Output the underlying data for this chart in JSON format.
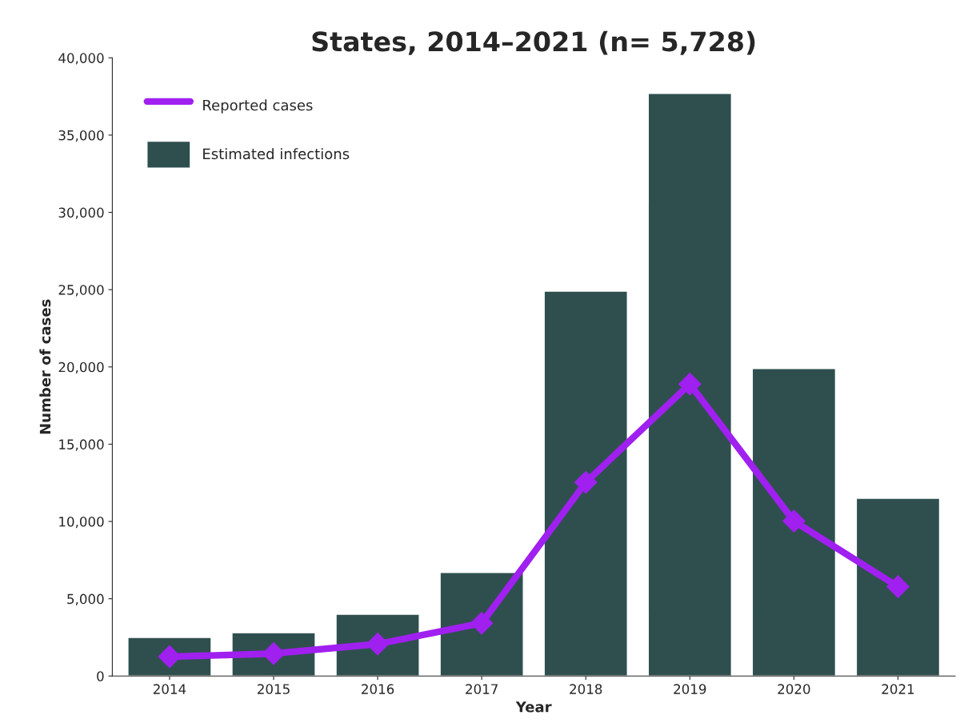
{
  "chart_data": {
    "type": "bar",
    "title": "States, 2014–2021 (n= 5,728)",
    "xlabel": "Year",
    "ylabel": "Number of cases",
    "categories": [
      "2014",
      "2015",
      "2016",
      "2017",
      "2018",
      "2019",
      "2020",
      "2021"
    ],
    "series": [
      {
        "name": "Estimated infections",
        "color": "#2f4f4f",
        "values": [
          2500,
          2800,
          4000,
          6700,
          24900,
          37700,
          19900,
          11500
        ]
      },
      {
        "name": "Reported cases",
        "type": "line",
        "color": "#a020f0",
        "marker": "diamond",
        "values": [
          1250,
          1450,
          2070,
          3420,
          12530,
          18890,
          10020,
          5780
        ]
      }
    ],
    "ylim": [
      0,
      40000
    ],
    "yticks": [
      {
        "value": 0,
        "label": "0"
      },
      {
        "value": 5000,
        "label": "5,000"
      },
      {
        "value": 10000,
        "label": "10,000"
      },
      {
        "value": 15000,
        "label": "15,000"
      },
      {
        "value": 20000,
        "label": "20,000"
      },
      {
        "value": 25000,
        "label": "25,000"
      },
      {
        "value": 30000,
        "label": "30,000"
      },
      {
        "value": 35000,
        "label": "35,000"
      },
      {
        "value": 40000,
        "label": "40,000"
      }
    ],
    "grid": false,
    "legend": "top left"
  }
}
